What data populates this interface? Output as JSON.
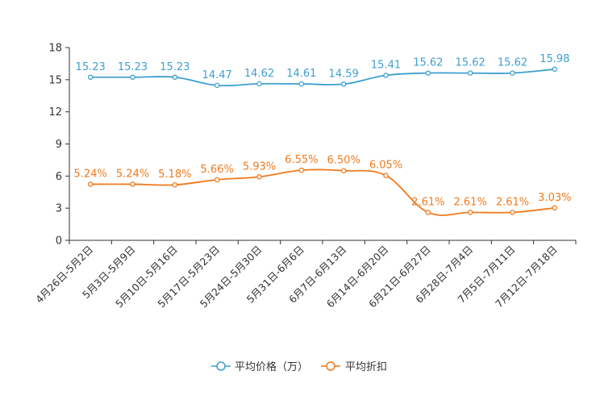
{
  "chart_data": {
    "type": "line",
    "title": "",
    "xlabel": "",
    "ylabel": "",
    "ylim": [
      0,
      18
    ],
    "yticks": [
      "0",
      "3",
      "6",
      "9",
      "12",
      "15",
      "18"
    ],
    "grid": false,
    "legend_position": "bottom-center",
    "categories": [
      "4月26日-5月2日",
      "5月3日-5月9日",
      "5月10日-5月16日",
      "5月17日-5月23日",
      "5月24日-5月30日",
      "5月31日-6月6日",
      "6月7日-6月13日",
      "6月14日-6月20日",
      "6月21日-6月27日",
      "6月28日-7月4日",
      "7月5日-7月11日",
      "7月12日-7月18日"
    ],
    "series": [
      {
        "name": "平均价格（万）",
        "color": "#3e9fd1",
        "values": [
          15.23,
          15.23,
          15.23,
          14.47,
          14.62,
          14.61,
          14.59,
          15.41,
          15.62,
          15.62,
          15.62,
          15.98
        ],
        "labels": [
          "15.23",
          "15.23",
          "15.23",
          "14.47",
          "14.62",
          "14.61",
          "14.59",
          "15.41",
          "15.62",
          "15.62",
          "15.62",
          "15.98"
        ]
      },
      {
        "name": "平均折扣",
        "color": "#f07a1d",
        "values": [
          5.24,
          5.24,
          5.18,
          5.66,
          5.93,
          6.55,
          6.5,
          6.05,
          2.61,
          2.61,
          2.61,
          3.03
        ],
        "labels": [
          "5.24%",
          "5.24%",
          "5.18%",
          "5.66%",
          "5.93%",
          "6.55%",
          "6.50%",
          "6.05%",
          "2.61%",
          "2.61%",
          "2.61%",
          "3.03%"
        ]
      }
    ]
  }
}
